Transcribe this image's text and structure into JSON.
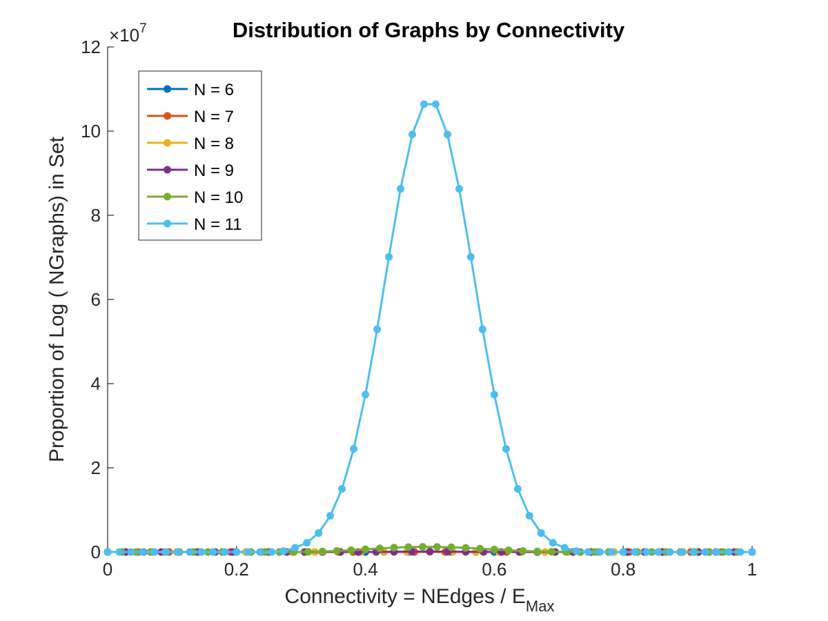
{
  "chart_data": {
    "type": "line",
    "title": "Distribution of Graphs by Connectivity",
    "xlabel": "Connectivity = NEdges / E",
    "xlabel_subscript": "Max",
    "ylabel": "Proportion of Log ( NGraphs) in Set",
    "y_exponent_base": "×10",
    "y_exponent_power": "7",
    "xlim": [
      0,
      1
    ],
    "ylim": [
      0,
      120000000
    ],
    "y_multiplier": 10000000,
    "x_ticks": [
      0,
      0.2,
      0.4,
      0.6,
      0.8,
      1
    ],
    "x_tick_labels": [
      "0",
      "0.2",
      "0.4",
      "0.6",
      "0.8",
      "1"
    ],
    "y_ticks": [
      0,
      20000000,
      40000000,
      60000000,
      80000000,
      100000000,
      120000000
    ],
    "y_tick_labels": [
      "0",
      "2",
      "4",
      "6",
      "8",
      "10",
      "12"
    ],
    "grid": false,
    "legend_position": "top-left",
    "series": [
      {
        "name": "N = 6",
        "color": "#0072BD",
        "x": [
          0,
          0.0667,
          0.1333,
          0.2,
          0.2667,
          0.3333,
          0.4,
          0.4667,
          0.5333,
          0.6,
          0.6667,
          0.7333,
          0.8,
          0.8667,
          0.9333,
          1
        ],
        "y": [
          0,
          0,
          0,
          0,
          0,
          0,
          0,
          100,
          100,
          0,
          0,
          0,
          0,
          0,
          0,
          0
        ]
      },
      {
        "name": "N = 7",
        "color": "#D95319",
        "x": [
          0,
          0.0476,
          0.0952,
          0.1429,
          0.1905,
          0.2381,
          0.2857,
          0.3333,
          0.381,
          0.4286,
          0.4762,
          0.5238,
          0.5714,
          0.619,
          0.6667,
          0.7143,
          0.7619,
          0.8095,
          0.8571,
          0.9048,
          0.9524,
          1
        ],
        "y": [
          0,
          0,
          0,
          0,
          0,
          0,
          0,
          0,
          0,
          1000,
          2000,
          2000,
          1000,
          0,
          0,
          0,
          0,
          0,
          0,
          0,
          0,
          0
        ]
      },
      {
        "name": "N = 8",
        "color": "#EDB120",
        "x": [
          0,
          0.0357,
          0.0714,
          0.1071,
          0.1429,
          0.1786,
          0.2143,
          0.25,
          0.2857,
          0.3214,
          0.3571,
          0.3929,
          0.4286,
          0.4643,
          0.5,
          0.5357,
          0.5714,
          0.6071,
          0.6429,
          0.6786,
          0.7143,
          0.75,
          0.7857,
          0.8214,
          0.8571,
          0.8929,
          0.9286,
          0.9643,
          1
        ],
        "y": [
          0,
          0,
          0,
          0,
          0,
          0,
          0,
          0,
          0,
          0,
          0,
          10000,
          20000,
          40000,
          50000,
          40000,
          20000,
          10000,
          0,
          0,
          0,
          0,
          0,
          0,
          0,
          0,
          0,
          0,
          0
        ]
      },
      {
        "name": "N = 9",
        "color": "#7E2F8E",
        "x": [
          0,
          0.0278,
          0.0556,
          0.0833,
          0.1111,
          0.1389,
          0.1667,
          0.1944,
          0.2222,
          0.25,
          0.2778,
          0.3056,
          0.3333,
          0.3611,
          0.3889,
          0.4167,
          0.4444,
          0.4722,
          0.5,
          0.5278,
          0.5556,
          0.5833,
          0.6111,
          0.6389,
          0.6667,
          0.6944,
          0.7222,
          0.75,
          0.7778,
          0.8056,
          0.8333,
          0.8611,
          0.8889,
          0.9167,
          0.9444,
          0.9722,
          1
        ],
        "y": [
          0,
          0,
          0,
          0,
          0,
          0,
          0,
          0,
          0,
          0,
          0,
          0,
          0,
          0,
          10000,
          30000,
          50000,
          80000,
          100000,
          80000,
          50000,
          30000,
          10000,
          0,
          0,
          0,
          0,
          0,
          0,
          0,
          0,
          0,
          0,
          0,
          0,
          0,
          0
        ]
      },
      {
        "name": "N = 10",
        "color": "#77AC30",
        "x": [
          0,
          0.0222,
          0.0444,
          0.0667,
          0.0889,
          0.1111,
          0.1333,
          0.1556,
          0.1778,
          0.2,
          0.2222,
          0.2444,
          0.2667,
          0.2889,
          0.3111,
          0.3333,
          0.3556,
          0.3778,
          0.4,
          0.4222,
          0.4444,
          0.4667,
          0.4889,
          0.5111,
          0.5333,
          0.5556,
          0.5778,
          0.6,
          0.6222,
          0.6444,
          0.6667,
          0.6889,
          0.7111,
          0.7333,
          0.7556,
          0.7778,
          0.8,
          0.8222,
          0.8444,
          0.8667,
          0.8889,
          0.9111,
          0.9333,
          0.9556,
          0.9778,
          1
        ],
        "y": [
          0,
          0,
          0,
          0,
          0,
          0,
          0,
          0,
          0,
          0,
          0,
          0,
          0,
          0,
          50000,
          120000,
          250000,
          430000,
          640000,
          860000,
          1040000,
          1160000,
          1220000,
          1200000,
          1120000,
          980000,
          790000,
          590000,
          400000,
          240000,
          130000,
          60000,
          20000,
          0,
          0,
          0,
          0,
          0,
          0,
          0,
          0,
          0,
          0,
          0,
          0,
          0
        ]
      },
      {
        "name": "N = 11",
        "color": "#4DBEEE",
        "x": [
          0,
          0.0182,
          0.0364,
          0.0545,
          0.0727,
          0.0909,
          0.1091,
          0.1273,
          0.1455,
          0.1636,
          0.1818,
          0.2,
          0.2182,
          0.2364,
          0.2545,
          0.2727,
          0.2909,
          0.3091,
          0.3273,
          0.3455,
          0.3636,
          0.3818,
          0.4,
          0.4182,
          0.4364,
          0.4545,
          0.4727,
          0.4909,
          0.5091,
          0.5273,
          0.5455,
          0.5636,
          0.5818,
          0.6,
          0.6182,
          0.6364,
          0.6545,
          0.6727,
          0.6909,
          0.7091,
          0.7273,
          0.7455,
          0.7636,
          0.7818,
          0.8,
          0.8182,
          0.8364,
          0.8545,
          0.8727,
          0.8909,
          0.9091,
          0.9273,
          0.9455,
          0.9636,
          0.9818,
          1
        ],
        "y": [
          0,
          0,
          0,
          0,
          0,
          0,
          0,
          0,
          0,
          0,
          0,
          0,
          0,
          0,
          0,
          200000,
          1000000,
          2200000,
          4500000,
          8600000,
          15000000,
          24500000,
          37400000,
          52900000,
          70100000,
          86300000,
          99200000,
          106400000,
          106400000,
          99200000,
          86300000,
          70100000,
          52900000,
          37400000,
          24500000,
          15000000,
          8600000,
          4500000,
          2200000,
          1000000,
          200000,
          0,
          0,
          0,
          0,
          0,
          0,
          0,
          0,
          0,
          0,
          0,
          0,
          0,
          0,
          0
        ]
      }
    ]
  }
}
